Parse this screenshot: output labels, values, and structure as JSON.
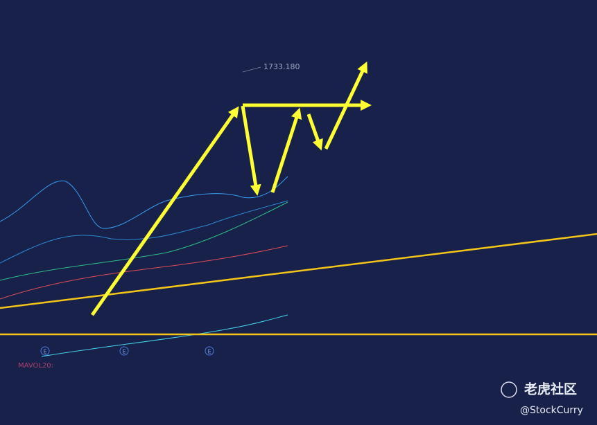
{
  "peak_label": "1733.180",
  "volume_label": "MAVOL20:",
  "event_markers": [
    "E",
    "E",
    "E"
  ],
  "watermark": {
    "brand": "老虎社区",
    "handle": "@StockCurry"
  }
}
